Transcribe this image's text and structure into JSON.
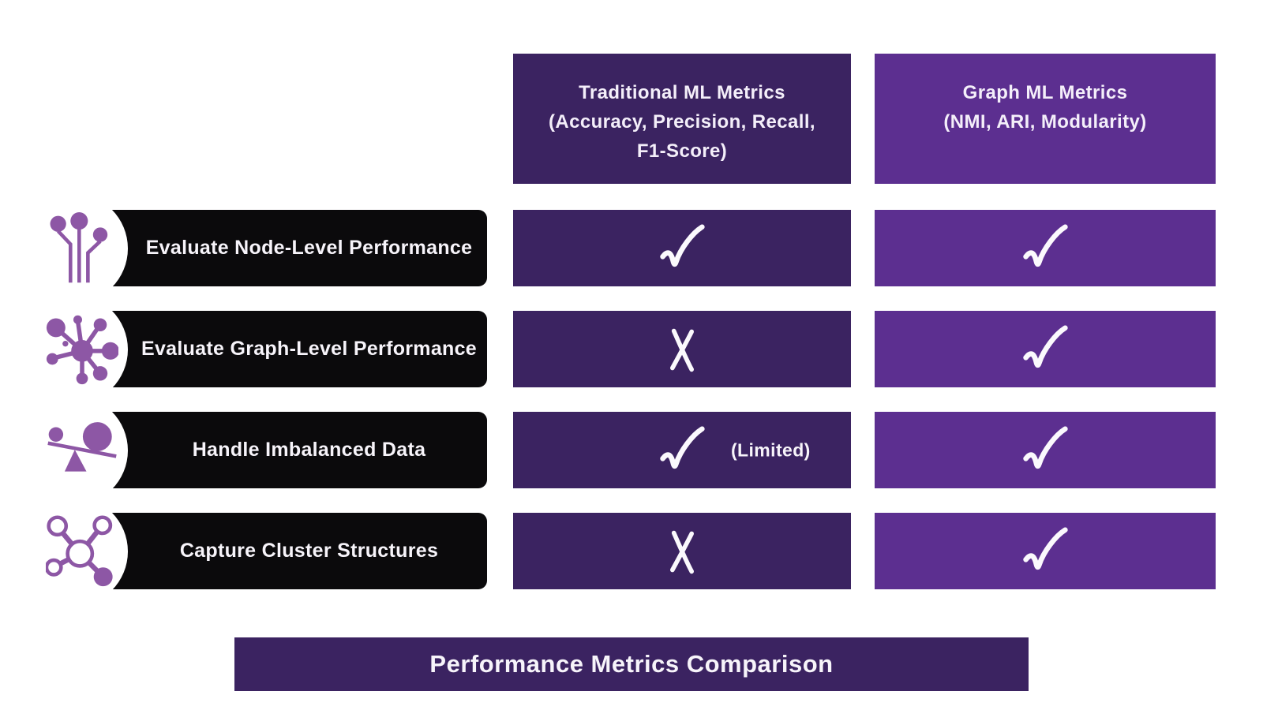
{
  "theme": {
    "background": "#ffffff",
    "dark_purple": "#3b2361",
    "light_purple": "#5c2f90",
    "bar_black": "#0b0a0c",
    "icon_purple": "#8d57a5",
    "text_light": "#f4effa"
  },
  "columns": [
    {
      "name": "traditional-ml-metrics",
      "lines": [
        "Traditional ML Metrics",
        "(Accuracy, Precision, Recall,",
        "F1-Score)"
      ]
    },
    {
      "name": "graph-ml-metrics",
      "lines": [
        "Graph ML Metrics",
        "(NMI, ARI, Modularity)"
      ]
    }
  ],
  "rows": [
    {
      "label": "Evaluate Node-Level Performance",
      "icon": "node-pins-icon",
      "traditional": {
        "mark": "check",
        "note": ""
      },
      "graph": {
        "mark": "check"
      }
    },
    {
      "label": "Evaluate Graph-Level Performance",
      "icon": "network-hub-icon",
      "traditional": {
        "mark": "cross",
        "note": ""
      },
      "graph": {
        "mark": "check"
      }
    },
    {
      "label": "Handle Imbalanced Data",
      "icon": "balance-scale-icon",
      "traditional": {
        "mark": "check",
        "note": "(Limited)"
      },
      "graph": {
        "mark": "check"
      }
    },
    {
      "label": "Capture Cluster Structures",
      "icon": "cluster-graph-icon",
      "traditional": {
        "mark": "cross",
        "note": ""
      },
      "graph": {
        "mark": "check"
      }
    }
  ],
  "footer": {
    "title": "Performance Metrics Comparison"
  }
}
